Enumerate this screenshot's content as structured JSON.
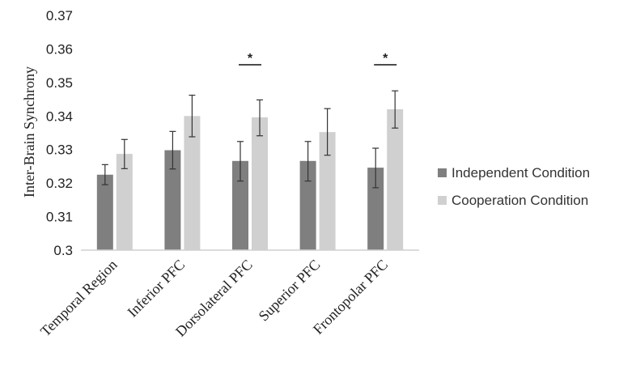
{
  "chart_data": {
    "type": "bar",
    "title": "",
    "xlabel": "",
    "ylabel": "Inter-Brain Synchrony",
    "ylim": [
      0.3,
      0.37
    ],
    "yticks": [
      "0.3",
      "0.31",
      "0.32",
      "0.33",
      "0.34",
      "0.35",
      "0.36",
      "0.37"
    ],
    "grid": false,
    "legend_position": "right",
    "categories": [
      "Temporal Region",
      "Inferior PFC",
      "Dorsolateral PFC",
      "Superior PFC",
      "Frontopolar PFC"
    ],
    "series": [
      {
        "name": "Independent Condition",
        "color": "#7f7f7f",
        "values": [
          0.3225,
          0.3298,
          0.3266,
          0.3266,
          0.3246
        ],
        "err_low": [
          0.3195,
          0.3242,
          0.3206,
          0.3206,
          0.3186
        ],
        "err_high": [
          0.3255,
          0.3354,
          0.3324,
          0.3324,
          0.3304
        ]
      },
      {
        "name": "Cooperation Condition",
        "color": "#d0d0d0",
        "values": [
          0.3287,
          0.34,
          0.3396,
          0.3352,
          0.342
        ],
        "err_low": [
          0.3243,
          0.3338,
          0.3341,
          0.3283,
          0.3364
        ],
        "err_high": [
          0.333,
          0.3462,
          0.3448,
          0.3422,
          0.3475
        ]
      }
    ],
    "significance": [
      {
        "category": "Dorsolateral PFC",
        "label": "*"
      },
      {
        "category": "Frontopolar PFC",
        "label": "*"
      }
    ]
  }
}
